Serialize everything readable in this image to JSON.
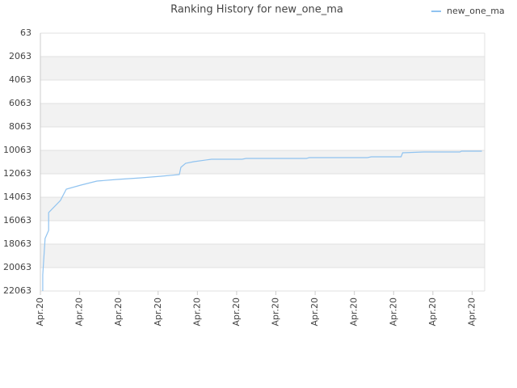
{
  "chart_data": {
    "type": "line",
    "title": "Ranking History for new_one_ma",
    "x": [
      0.06,
      0.06,
      0.1,
      0.12,
      0.21,
      0.21,
      0.51,
      0.66,
      1.03,
      1.44,
      1.95,
      2.57,
      3.08,
      3.54,
      3.58,
      3.7,
      3.91,
      4.36,
      5.14,
      5.24,
      6.78,
      6.85,
      8.33,
      8.43,
      9.19,
      9.23,
      9.77,
      10.69,
      10.73,
      11.25
    ],
    "series": [
      {
        "name": "new_one_ma",
        "color": "#90c3f0",
        "values": [
          22063,
          20684,
          18615,
          17580,
          16891,
          15374,
          14339,
          13374,
          13029,
          12684,
          12546,
          12408,
          12270,
          12132,
          11511,
          11167,
          11029,
          10822,
          10822,
          10753,
          10753,
          10684,
          10684,
          10615,
          10615,
          10270,
          10201,
          10201,
          10132,
          10132
        ]
      }
    ],
    "xlim": [
      0,
      11.32
    ],
    "xticks": [
      {
        "value": 0,
        "label": "Apr.20"
      },
      {
        "value": 1,
        "label": "Apr.20"
      },
      {
        "value": 2,
        "label": "Apr.20"
      },
      {
        "value": 3,
        "label": "Apr.20"
      },
      {
        "value": 4,
        "label": "Apr.20"
      },
      {
        "value": 5,
        "label": "Apr.20"
      },
      {
        "value": 6,
        "label": "Apr.20"
      },
      {
        "value": 7,
        "label": "Apr.20"
      },
      {
        "value": 8,
        "label": "Apr.20"
      },
      {
        "value": 9,
        "label": "Apr.20"
      },
      {
        "value": 10,
        "label": "Apr.20"
      },
      {
        "value": 11,
        "label": "Apr.20"
      }
    ],
    "ylim": [
      22063,
      63
    ],
    "yticks": [
      63,
      2063,
      4063,
      6063,
      8063,
      10063,
      12063,
      14063,
      16063,
      18063,
      20063,
      22063
    ],
    "grid": true,
    "legend": "top-right"
  }
}
